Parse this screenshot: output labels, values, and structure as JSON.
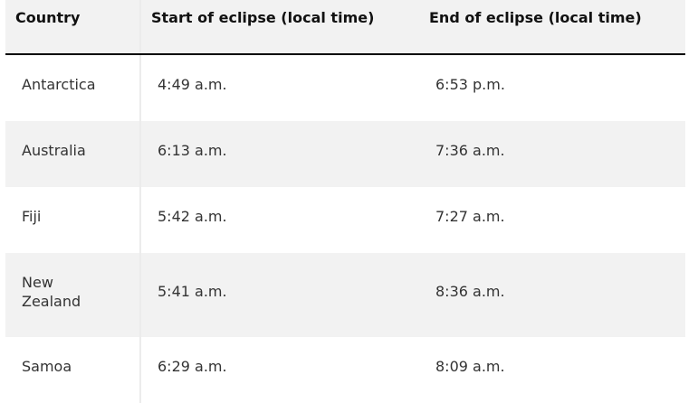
{
  "table": {
    "headers": [
      "Country",
      "Start of eclipse (local time)",
      "End of eclipse (local time)"
    ],
    "rows": [
      [
        "Antarctica",
        "4:49 a.m.",
        "6:53 p.m."
      ],
      [
        "Australia",
        "6:13 a.m.",
        "7:36 a.m."
      ],
      [
        "Fiji",
        "5:42 a.m.",
        "7:27 a.m."
      ],
      [
        "New Zealand",
        "5:41 a.m.",
        "8:36 a.m."
      ],
      [
        "Samoa",
        "6:29 a.m.",
        "8:09 a.m."
      ]
    ]
  }
}
